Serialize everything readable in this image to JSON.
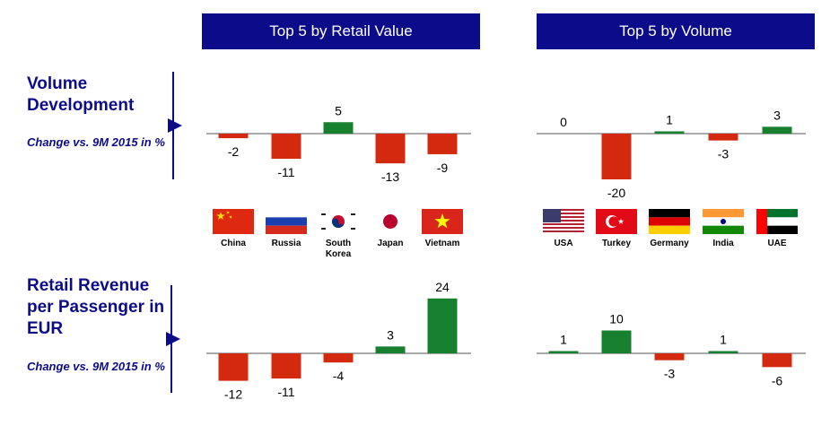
{
  "rows": [
    {
      "title": "Volume Development",
      "subtitle": "Change vs. 9M 2015 in %"
    },
    {
      "title": "Retail Revenue per Passenger in EUR",
      "subtitle": "Change vs. 9M 2015 in %"
    }
  ],
  "positive_color": "#17802e",
  "negative_color": "#d2290f",
  "chart_data": [
    {
      "type": "bar",
      "title": "Top 5 by Retail Value",
      "categories": [
        "China",
        "Russia",
        "South Korea",
        "Japan",
        "Vietnam"
      ],
      "values": [
        -2,
        -11,
        5,
        -13,
        -9
      ]
    },
    {
      "type": "bar",
      "title": "Top 5 by Volume",
      "categories": [
        "USA",
        "Turkey",
        "Germany",
        "India",
        "UAE"
      ],
      "values": [
        0,
        -20,
        1,
        -3,
        3
      ]
    },
    {
      "type": "bar",
      "values": [
        -12,
        -11,
        -4,
        3,
        24
      ]
    },
    {
      "type": "bar",
      "values": [
        1,
        10,
        -3,
        1,
        -6
      ]
    }
  ]
}
